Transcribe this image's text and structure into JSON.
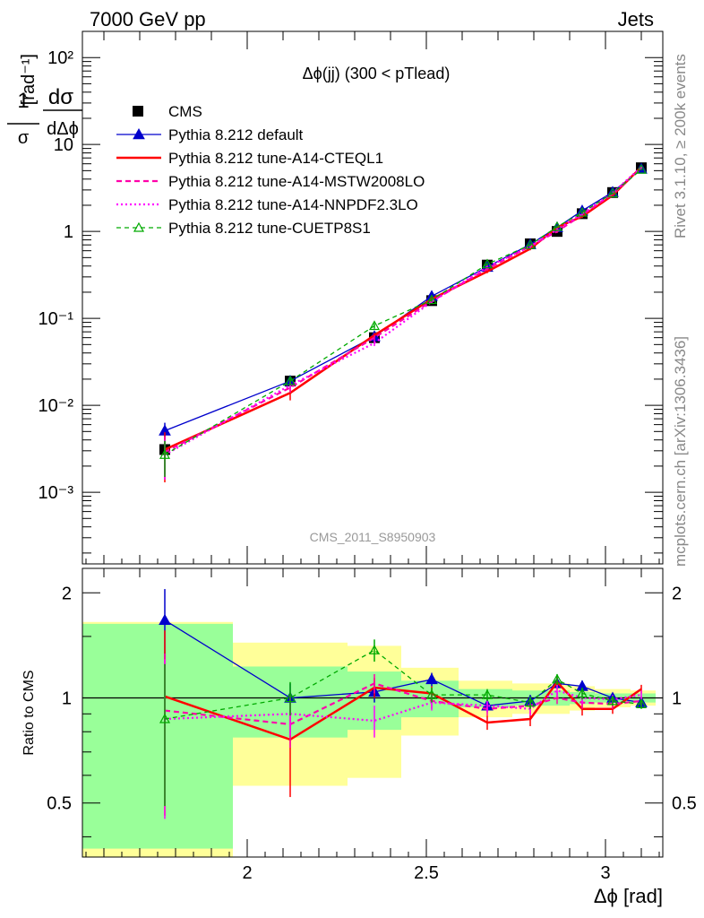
{
  "header": {
    "left": "7000 GeV pp",
    "right": "Jets"
  },
  "side_labels": {
    "rivet": "Rivet 3.1.10, ≥ 200k events",
    "mcplots": "mcplots.cern.ch [arXiv:1306.3436]"
  },
  "chart_data": [
    {
      "type": "scatter",
      "panel": "main",
      "title": "Δϕ(jj) (300 < pTlead)",
      "ylabel": "1/σ dσ/dΔϕ [rad⁻¹]",
      "xlabel": "Δϕ [rad]",
      "yscale": "log",
      "xlim": [
        1.54,
        3.16
      ],
      "ylim": [
        0.00015,
        200
      ],
      "y_ticks": [
        "10⁻³",
        "10⁻²",
        "10⁻¹",
        "1",
        "10",
        "10²"
      ],
      "watermark": "CMS_2011_S8950903",
      "x": [
        1.77,
        2.12,
        2.355,
        2.515,
        2.67,
        2.79,
        2.865,
        2.935,
        3.02,
        3.1
      ],
      "series": [
        {
          "name": "CMS",
          "style": "black-square",
          "color": "#000000",
          "values": [
            0.0031,
            0.019,
            0.06,
            0.16,
            0.41,
            0.72,
            1.0,
            1.6,
            2.8,
            5.4
          ],
          "err_low": [
            0.0015,
            0.0018,
            0.004,
            0.01,
            0.02,
            0.03,
            0.04,
            0.06,
            0.1,
            0.2
          ],
          "err_high": [
            0.0015,
            0.0018,
            0.004,
            0.01,
            0.02,
            0.03,
            0.04,
            0.06,
            0.1,
            0.2
          ],
          "band_inner": [
            0.63,
            0.23,
            0.19,
            0.12,
            0.06,
            0.05,
            0.05,
            0.04,
            0.03,
            0.03
          ],
          "band_outer": [
            0.65,
            0.44,
            0.41,
            0.22,
            0.12,
            0.1,
            0.1,
            0.08,
            0.06,
            0.05
          ]
        },
        {
          "name": "Pythia 8.212 default",
          "style": "blue-triangle",
          "color": "#0000cc",
          "values": [
            0.0051,
            0.019,
            0.062,
            0.18,
            0.39,
            0.71,
            1.11,
            1.73,
            2.83,
            5.25
          ],
          "err": [
            0.0012,
            0.0018,
            0.004,
            0.008,
            0.015,
            0.025,
            0.04,
            0.06,
            0.08,
            0.12
          ]
        },
        {
          "name": "Pythia 8.212 tune-A14-CTEQL1",
          "style": "red-solid",
          "color": "#ff0000",
          "values": [
            0.0031,
            0.0139,
            0.064,
            0.167,
            0.346,
            0.632,
            1.11,
            1.49,
            2.6,
            5.5
          ],
          "err": [
            0.0018,
            0.0025,
            0.004,
            0.007,
            0.015,
            0.025,
            0.04,
            0.06,
            0.08,
            0.12
          ]
        },
        {
          "name": "Pythia 8.212 tune-A14-MSTW2008LO",
          "style": "magenta-dashed",
          "color": "#ff00aa",
          "values": [
            0.0029,
            0.016,
            0.06,
            0.158,
            0.37,
            0.68,
            1.0,
            1.55,
            2.7,
            5.3
          ],
          "err": [
            0.0015,
            0.002,
            0.004,
            0.007,
            0.015,
            0.025,
            0.04,
            0.06,
            0.08,
            0.12
          ]
        },
        {
          "name": "Pythia 8.212 tune-A14-NNPDF2.3LO",
          "style": "magenta-dotted",
          "color": "#ff00ff",
          "values": [
            0.0027,
            0.017,
            0.052,
            0.155,
            0.39,
            0.67,
            1.05,
            1.6,
            2.78,
            5.5
          ],
          "err": [
            0.0013,
            0.002,
            0.004,
            0.007,
            0.015,
            0.025,
            0.04,
            0.06,
            0.08,
            0.12
          ]
        },
        {
          "name": "Pythia 8.212 tune-CUETP8S1",
          "style": "green-dashed-triangle",
          "color": "#00aa00",
          "values": [
            0.0027,
            0.019,
            0.082,
            0.163,
            0.42,
            0.7,
            1.13,
            1.65,
            2.75,
            5.15
          ],
          "err": [
            0.0012,
            0.002,
            0.006,
            0.008,
            0.015,
            0.025,
            0.04,
            0.06,
            0.08,
            0.12
          ]
        }
      ]
    },
    {
      "type": "line",
      "panel": "ratio",
      "ylabel": "Ratio to CMS",
      "xlabel": "Δϕ [rad]",
      "ylim": [
        0.35,
        2.35
      ],
      "y_ticks": [
        0.5,
        1,
        2
      ],
      "y_tick_labels": [
        "0.5",
        "1",
        "2"
      ],
      "x_ticks": [
        2,
        2.5,
        3
      ],
      "x_tick_labels": [
        "2",
        "2.5",
        "3"
      ],
      "reference_line": 1,
      "bins": [
        [
          1.54,
          1.96
        ],
        [
          1.96,
          2.28
        ],
        [
          2.28,
          2.43
        ],
        [
          2.43,
          2.59
        ],
        [
          2.59,
          2.74
        ],
        [
          2.74,
          2.84
        ],
        [
          2.84,
          2.9
        ],
        [
          2.9,
          2.97
        ],
        [
          2.97,
          3.07
        ],
        [
          3.07,
          3.14
        ]
      ],
      "x": [
        1.77,
        2.12,
        2.355,
        2.515,
        2.67,
        2.79,
        2.865,
        2.935,
        3.02,
        3.1
      ],
      "series": [
        {
          "name": "Pythia 8.212 default",
          "color": "#0000cc",
          "values": [
            1.67,
            1.0,
            1.04,
            1.13,
            0.95,
            0.98,
            1.1,
            1.08,
            1.0,
            0.97
          ],
          "err": [
            0.38,
            0.1,
            0.07,
            0.05,
            0.04,
            0.04,
            0.04,
            0.04,
            0.03,
            0.02
          ]
        },
        {
          "name": "Pythia 8.212 tune-A14-CTEQL1",
          "color": "#ff0000",
          "values": [
            1.01,
            0.76,
            1.07,
            1.03,
            0.85,
            0.87,
            1.11,
            0.93,
            0.93,
            1.06
          ],
          "err": [
            0.55,
            0.24,
            0.07,
            0.05,
            0.04,
            0.04,
            0.04,
            0.04,
            0.03,
            0.03
          ]
        },
        {
          "name": "Pythia 8.212 tune-A14-MSTW2008LO",
          "color": "#ff00aa",
          "values": [
            0.92,
            0.84,
            1.1,
            0.98,
            0.93,
            0.95,
            1.0,
            0.97,
            0.96,
            0.98
          ],
          "err": [
            0.42,
            0.12,
            0.07,
            0.05,
            0.04,
            0.04,
            0.04,
            0.04,
            0.03,
            0.03
          ]
        },
        {
          "name": "Pythia 8.212 tune-A14-NNPDF2.3LO",
          "color": "#ff00ff",
          "values": [
            0.87,
            0.9,
            0.86,
            0.97,
            0.95,
            0.93,
            1.05,
            1.0,
            0.99,
            1.02
          ],
          "err": [
            0.42,
            0.12,
            0.09,
            0.05,
            0.04,
            0.04,
            0.04,
            0.04,
            0.03,
            0.03
          ]
        },
        {
          "name": "Pythia 8.212 tune-CUETP8S1",
          "color": "#00aa00",
          "values": [
            0.87,
            1.0,
            1.37,
            1.02,
            1.02,
            0.97,
            1.13,
            1.03,
            0.98,
            0.96
          ],
          "err": [
            0.38,
            0.11,
            0.1,
            0.05,
            0.04,
            0.04,
            0.04,
            0.04,
            0.03,
            0.03
          ]
        }
      ]
    }
  ]
}
